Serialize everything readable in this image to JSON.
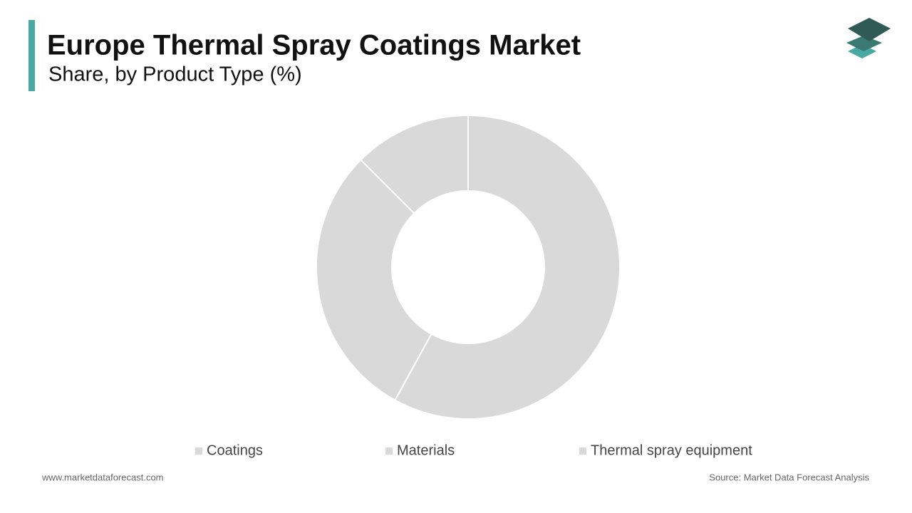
{
  "chart_data": {
    "type": "donut",
    "title": "Europe Thermal Spray Coatings Market",
    "subtitle": "Share, by Product Type (%)",
    "categories": [
      "Coatings",
      "Materials",
      "Thermal spray equipment"
    ],
    "values": [
      58,
      29.5,
      12.5
    ],
    "colors": [
      "#d9d9d9",
      "#d9d9d9",
      "#d9d9d9"
    ],
    "website": "www.marketdataforecast.com",
    "source": "Source: Market Data Forecast Analysis"
  }
}
